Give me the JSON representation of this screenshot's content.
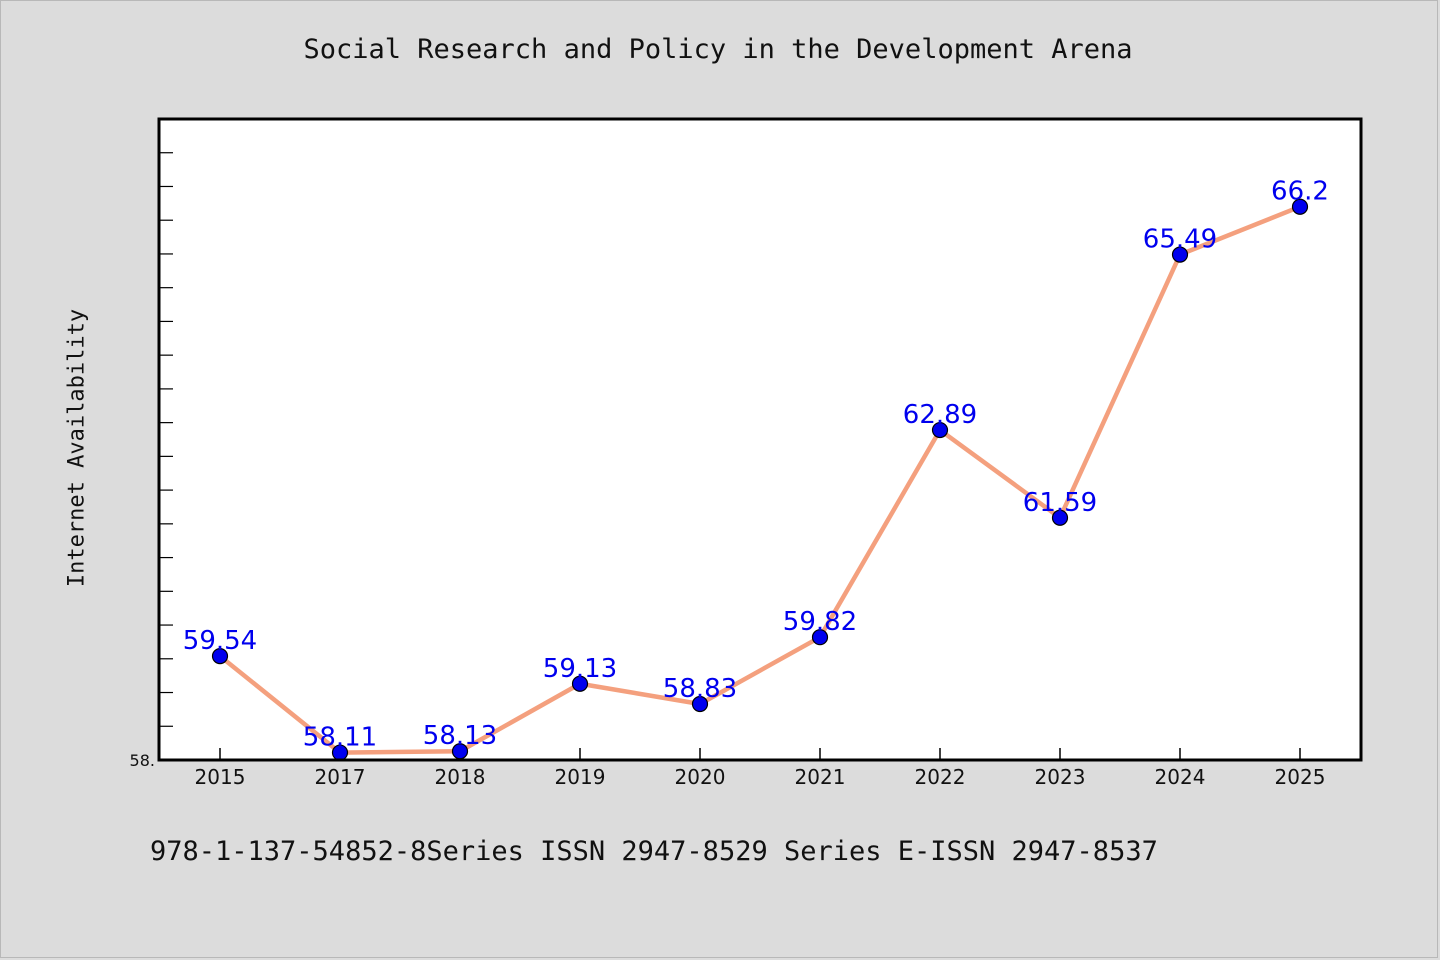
{
  "chart_data": {
    "type": "line",
    "title": "Social Research and Policy in the Development Arena",
    "xlabel": "",
    "ylabel": "Internet Availability",
    "categories": [
      "2015",
      "2017",
      "2018",
      "2019",
      "2020",
      "2021",
      "2022",
      "2023",
      "2024",
      "2025"
    ],
    "series": [
      {
        "values": [
          59.54,
          58.11,
          58.13,
          59.13,
          58.83,
          59.82,
          62.89,
          61.59,
          65.49,
          66.2
        ],
        "data_labels": [
          "59.54",
          "58.11",
          "58.13",
          "59.13",
          "58.83",
          "59.82",
          "62.89",
          "61.59",
          "65.49",
          "66.2"
        ]
      }
    ],
    "ylim": [
      58.0,
      67.5
    ],
    "y_tick_label": "58.",
    "grid": false,
    "legend": "none",
    "colors": {
      "line": "#f4a07e",
      "marker": "#0000ee",
      "data_label": "#0000ee",
      "plot_background": "#ffffff",
      "page_background": "#dcdcdc"
    }
  },
  "footer": {
    "note": "978-1-137-54852-8Series ISSN 2947-8529 Series E-ISSN 2947-8537"
  }
}
